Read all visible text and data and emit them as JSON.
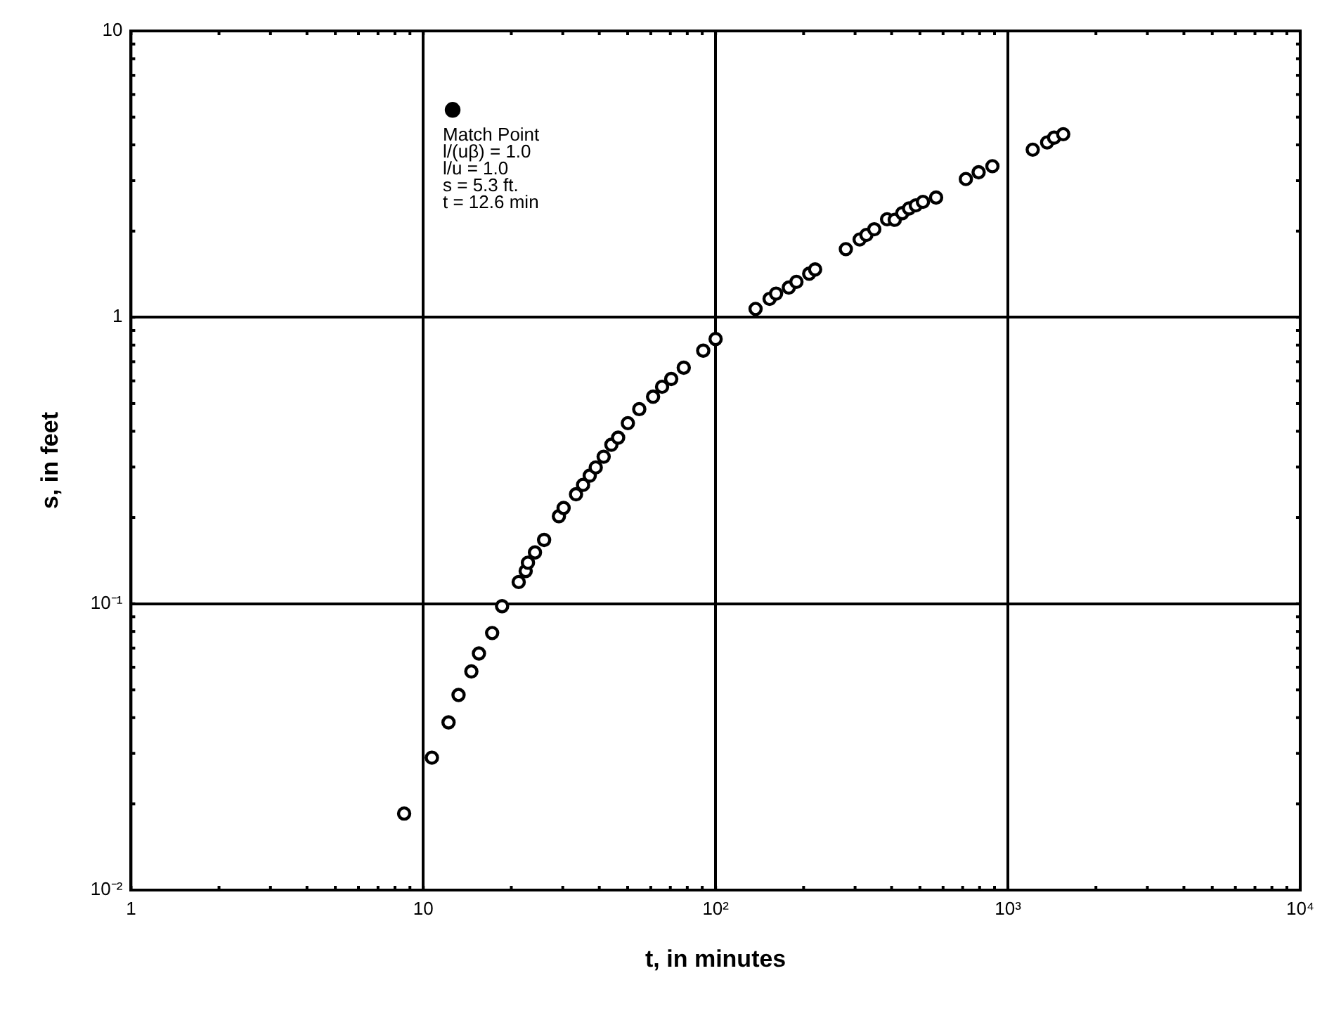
{
  "chart_data": {
    "type": "scatter",
    "xlabel": "t, in minutes",
    "ylabel": "s, in feet",
    "log": "xy",
    "grid": true,
    "legend": false,
    "marker": "circle",
    "xlim": [
      1,
      10000
    ],
    "ylim": [
      0.01,
      10
    ],
    "xticks": [
      1,
      {
        "value": 2,
        "label": null
      },
      {
        "value": 3,
        "label": null
      },
      {
        "value": 4,
        "label": null
      },
      {
        "value": 5,
        "label": null
      },
      {
        "value": 6,
        "label": null
      },
      {
        "value": 7,
        "label": null
      },
      {
        "value": 8,
        "label": null
      },
      {
        "value": 9,
        "label": null
      },
      10,
      {
        "value": 20,
        "label": null
      },
      {
        "value": 30,
        "label": null
      },
      {
        "value": 40,
        "label": null
      },
      {
        "value": 50,
        "label": null
      },
      {
        "value": 60,
        "label": null
      },
      {
        "value": 70,
        "label": null
      },
      {
        "value": 80,
        "label": null
      },
      {
        "value": 90,
        "label": null
      },
      {
        "value": 100,
        "label": "10²"
      },
      {
        "value": 200,
        "label": null
      },
      {
        "value": 300,
        "label": null
      },
      {
        "value": 400,
        "label": null
      },
      {
        "value": 500,
        "label": null
      },
      {
        "value": 600,
        "label": null
      },
      {
        "value": 700,
        "label": null
      },
      {
        "value": 800,
        "label": null
      },
      {
        "value": 900,
        "label": null
      },
      {
        "value": 1000,
        "label": "10³"
      },
      {
        "value": 2000,
        "label": null
      },
      {
        "value": 3000,
        "label": null
      },
      {
        "value": 4000,
        "label": null
      },
      {
        "value": 5000,
        "label": null
      },
      {
        "value": 6000,
        "label": null
      },
      {
        "value": 7000,
        "label": null
      },
      {
        "value": 8000,
        "label": null
      },
      {
        "value": 9000,
        "label": null
      },
      {
        "value": 10000,
        "label": "10⁴"
      }
    ],
    "yticks": [
      {
        "value": 0.01,
        "label": "10⁻²"
      },
      {
        "value": 0.02,
        "label": null
      },
      {
        "value": 0.03,
        "label": null
      },
      {
        "value": 0.04,
        "label": null
      },
      {
        "value": 0.05,
        "label": null
      },
      {
        "value": 0.06,
        "label": null
      },
      {
        "value": 0.07,
        "label": null
      },
      {
        "value": 0.08,
        "label": null
      },
      {
        "value": 0.09,
        "label": null
      },
      {
        "value": 0.1,
        "label": "10⁻¹"
      },
      {
        "value": 0.2,
        "label": null
      },
      {
        "value": 0.3,
        "label": null
      },
      {
        "value": 0.4,
        "label": null
      },
      {
        "value": 0.5,
        "label": null
      },
      {
        "value": 0.6,
        "label": null
      },
      {
        "value": 0.7,
        "label": null
      },
      {
        "value": 0.8,
        "label": null
      },
      {
        "value": 0.9,
        "label": null
      },
      1,
      {
        "value": 2,
        "label": null
      },
      {
        "value": 3,
        "label": null
      },
      {
        "value": 4,
        "label": null
      },
      {
        "value": 5,
        "label": null
      },
      {
        "value": 6,
        "label": null
      },
      {
        "value": 7,
        "label": null
      },
      {
        "value": 8,
        "label": null
      },
      {
        "value": 9,
        "label": null
      },
      10
    ],
    "series": [
      {
        "color": "#000000",
        "x": [
          8.6,
          10.7,
          12.2,
          13.2,
          14.6,
          15.5,
          17.2,
          18.6,
          21.2,
          22.4,
          22.8,
          24.1,
          25.9,
          29.1,
          30.2,
          33.3,
          35.2,
          37.1,
          38.9,
          41.4,
          44.0,
          46.4,
          50.1,
          54.8,
          61.1,
          65.6,
          70.5,
          77.8,
          90.7,
          100,
          137,
          153,
          161,
          178,
          189,
          209,
          219,
          279,
          311,
          328,
          349,
          386,
          410,
          435,
          459,
          484,
          512,
          568,
          718,
          794,
          885,
          1216,
          1362,
          1439,
          1546
        ],
        "values": [
          0.0185,
          0.029,
          0.0385,
          0.048,
          0.058,
          0.067,
          0.079,
          0.098,
          0.119,
          0.13,
          0.139,
          0.151,
          0.167,
          0.202,
          0.216,
          0.241,
          0.26,
          0.28,
          0.299,
          0.326,
          0.359,
          0.38,
          0.427,
          0.478,
          0.528,
          0.572,
          0.609,
          0.667,
          0.765,
          0.84,
          1.07,
          1.16,
          1.21,
          1.27,
          1.33,
          1.42,
          1.47,
          1.73,
          1.87,
          1.94,
          2.03,
          2.2,
          2.19,
          2.31,
          2.4,
          2.46,
          2.53,
          2.62,
          3.04,
          3.21,
          3.37,
          3.85,
          4.08,
          4.24,
          4.36
        ]
      },
      {
        "color": "#000000",
        "x": [
          12.6
        ],
        "values": [
          5.3
        ]
      }
    ],
    "annotations": [
      "Match Point",
      "l/(uβ) = 1.0",
      "l/u = 1.0",
      "s = 5.3 ft.",
      "t = 12.6 min"
    ]
  }
}
